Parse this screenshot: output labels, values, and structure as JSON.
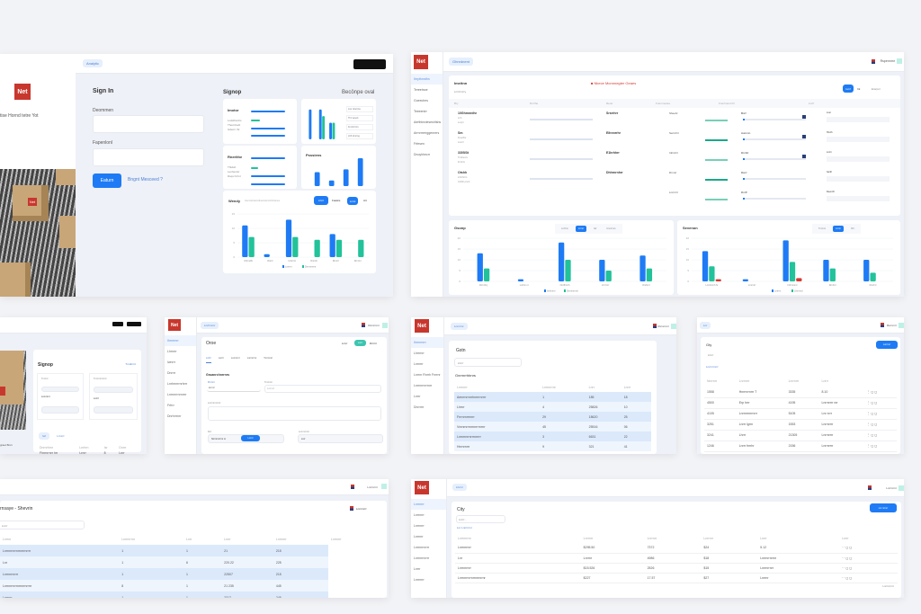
{
  "brand": {
    "logo": "Net",
    "accent": "#1e7bf5",
    "green": "#22c29a",
    "red": "#d63a32"
  },
  "signin": {
    "nav_pill": "Analytic",
    "tagline": "tise Hornd tetre Yot",
    "title": "Sign In",
    "field1_label": "Deommen",
    "field2_label": "Fapenlonl",
    "submit": "Eaturn",
    "forgot": "Bngnt Mesceed ?",
    "side_title": "Signop",
    "side_link": "Becönpe oval",
    "card1_title": "Imotor",
    "card1_lines": [
      "Lodsthenhs",
      "Thecnhedt",
      "Gdemr thr"
    ],
    "card3_title": "Rnerithe",
    "card3_lines": [
      "Thtdoh",
      "Lenhenstr",
      "Dsqs hrrtnr"
    ],
    "card2_legend": [
      "Lrer dnertna",
      "Thrr anerk",
      "Fnrrdt hrrs",
      "Lhft drnrmg"
    ],
    "card4_title": "Psssiens",
    "card5_title": "Wendy",
    "card5_subtitle": "Inenrranrdenrdtnanrdernrtnhrdenes",
    "card5_tabs": [
      "Lhrrt",
      "Fawkis",
      "Lnrsi",
      "Art"
    ]
  },
  "dash": {
    "nav_pill": "Ghnrdnent",
    "user": "Rspennrnr",
    "sidebar": [
      "Ihrythnrdhn",
      "Tereetnoe",
      "Goeeches",
      "Teeeentrr",
      "Aerthtnrdeseshfshs",
      "Arrnrrrerrggenrers",
      "Frfesen",
      "Dnoyhhecrr"
    ],
    "main_title": "Imeitnn",
    "alert": "■ Nkece Monnnegter Geaes",
    "filter": "Lrrnhrnrry",
    "actions": [
      "Iwnf",
      "Int",
      "Erarpnr"
    ],
    "cols": [
      "Bry",
      "Dnrrhe",
      "Rerer",
      "Fremmedes",
      "Frenhnent Ihr",
      "Lnrfr"
    ],
    "rows": [
      {
        "name": "10Ghmnrdhr",
        "sub": [
          "Lrrh",
          "Lnrqrr"
        ],
        "code": "Srsrrhrr",
        "status": "Sheehr",
        "slider": "Bnrf"
      },
      {
        "name": "Sm",
        "sub": [
          "Freethrs",
          "Lrerrrr"
        ],
        "code": "Eihnnrrhr",
        "status": "Sernrhrr",
        "slider": "Aummn"
      },
      {
        "name": "3305/3t",
        "sub": [
          "Tnrdnerrs",
          "Fnrtnrs"
        ],
        "code": "E1hrhhrr",
        "status": "Inhrdrrr",
        "slider": "Drnhrt"
      },
      {
        "name": "Otshh",
        "sub": [
          "Lrhrrhrrrs",
          "Ivhrhh pnnh"
        ],
        "code": "Dhhrnrnhrr",
        "status": "Drnnrr",
        "slider": "Dsrrr"
      },
      {
        "name": "",
        "sub": [],
        "code": "",
        "status": "Lnrrnrrr",
        "slider": "Dnrff"
      }
    ],
    "right_fields": [
      "Lner",
      "Hncth",
      "Lnrrn",
      "Iwnth",
      "Deenrrh"
    ],
    "chart1_title": "Gsonp",
    "chart1_tabs": [
      "Lnrfrnn",
      "Lrrnrr",
      "Iwf",
      "Unnrnnrs"
    ],
    "chart2_title": "Sevenon",
    "chart2_tabs": [
      "Tnrrnrn",
      "Lrrnn",
      "Ihf t"
    ]
  },
  "chart_data": [
    {
      "type": "bar",
      "title": "Wendy",
      "yticks": [
        0,
        5,
        10,
        15
      ],
      "ylim": [
        0,
        15
      ],
      "categories": [
        "Uhrrndhr",
        "Dtsrrr",
        "Urtrnrnr",
        "Dnrnhr",
        "Drnrrrr",
        "Drnrrnr"
      ],
      "series": [
        {
          "color": "#1e7bf5",
          "values": [
            11,
            1,
            13,
            0,
            8,
            0
          ]
        },
        {
          "color": "#22c29a",
          "values": [
            7,
            0,
            7,
            6,
            6,
            6
          ]
        }
      ],
      "legend": [
        "Lnrrrrn",
        "Drrnrnrnrnr"
      ]
    },
    {
      "type": "bar",
      "title": "Gsonp",
      "yticks": [
        0,
        5,
        10,
        15,
        20
      ],
      "ylim": [
        0,
        20
      ],
      "categories": [
        "Drrnrhry",
        "Lnrhrn nr",
        "Onrfhrnrh",
        "Lhr hrrr",
        "Onrhnrr"
      ],
      "series": [
        {
          "color": "#1e7bf5",
          "values": [
            13,
            1,
            18,
            10,
            12
          ]
        },
        {
          "color": "#22c29a",
          "values": [
            6,
            0,
            10,
            5,
            6
          ]
        }
      ],
      "legend": [
        "Irnhrnrnr",
        "Dnrnrnrnrnr"
      ]
    },
    {
      "type": "bar",
      "title": "Sevenon",
      "yticks": [
        0,
        5,
        10,
        15,
        20
      ],
      "ylim": [
        0,
        20
      ],
      "categories": [
        "Lnrnhnrrh hr",
        "Lrnrnrrr",
        "Irrhrnrnnrr",
        "Drnhrrr",
        "Drnrhrr"
      ],
      "series": [
        {
          "color": "#1e7bf5",
          "values": [
            14,
            1,
            19,
            10,
            10
          ]
        },
        {
          "color": "#22c29a",
          "values": [
            7,
            0,
            9,
            6,
            4
          ]
        },
        {
          "color": "#d63a32",
          "values": [
            1,
            0,
            1.5,
            0,
            0
          ]
        }
      ],
      "legend": [
        "Lrnhrn",
        "Lhrnrnrd"
      ]
    },
    {
      "type": "bar",
      "title": "",
      "ylim": [
        0,
        10
      ],
      "categories": [
        "a",
        "b",
        "c"
      ],
      "series": [
        {
          "color": "#1e7bf5",
          "values": [
            9,
            9,
            5
          ]
        },
        {
          "color": "#22c29a",
          "values": [
            0,
            7,
            5
          ]
        }
      ]
    },
    {
      "type": "bar",
      "title": "Psssiens",
      "ylim": [
        0,
        10
      ],
      "categories": [
        "a",
        "b",
        "c",
        "d"
      ],
      "series": [
        {
          "color": "#1e7bf5",
          "values": [
            5,
            2,
            6,
            10
          ]
        }
      ]
    }
  ],
  "signup": {
    "title": "Signop",
    "link": "Tnrdrnrrt",
    "fields": [
      "Tnrrnrr",
      "Lnrnrrnrr",
      "Tnrnrnrrrnrrrr",
      "Lnrrrr"
    ],
    "tab": "Iwf",
    "tab2": "Lrrnrrr",
    "cols": [
      "Dnrnrhrnr",
      "Lnrhrn",
      "Isr",
      "Dnrrr"
    ],
    "rows": [
      [
        "Fhrrnrrnrr hrr",
        "Lrnrr",
        "8",
        "Lnrr"
      ],
      [
        "Ohrrnrr",
        "Lhrrr",
        "8",
        "8"
      ]
    ],
    "caption": "graet Bnrn"
  },
  "order": {
    "nav_pill": "Lnrhrnrnr",
    "user": "Rsrnrnrnr",
    "sidebar": [
      "Ihrnrrnrr",
      "Lhrnrrr",
      "Iwnrrr",
      "Dnrrrr",
      "Lnrhrnrrrnrhrrr",
      "Lnrrnrrrnrnrrrr",
      "Frfrrr",
      "Dnrhrrrnrr"
    ],
    "title": "Oroe",
    "actions": [
      "Lrnrr",
      "Lnrrr",
      "Drrrrrr"
    ],
    "tabs": [
      "Lnrhr",
      "Lnrrrr",
      "Lnrnrrnrr",
      "Lnrrnrrrnr",
      "Tnrrnrnrr"
    ],
    "section": "Gruanrchnrrnrs",
    "f1": "Pnrrnrr",
    "f1v": "Lnr nr",
    "f2": "Tnrrnrnr",
    "f2v": "Lnrrnrrr",
    "f3": "Lnrnrrnrrnrrrr",
    "f4": "Drrr",
    "f4v": "Nnrnrrnrrrnr nr",
    "f4btn": "Lnrrrr",
    "f5": "Lnrnrnrrrnr",
    "f5v": "Lnrr"
  },
  "list": {
    "nav_pill": "Lnrnrrnr",
    "user": "Rsrnrnrnr",
    "sidebar": [
      "Ihrrnrnrrr",
      "Lhrrrnrr",
      "Lnrnrrr",
      "Lnrrnr Rnrrh Fnrrnr",
      "Lnrrnrrnrrrnrr",
      "Lnrrr",
      "Dnrrrrrr"
    ],
    "title": "Gstn",
    "search": "Lhrrr",
    "section": "Gnrrnrrhbnrs",
    "cols": [
      "Lnrrnrrr",
      "Lnrrnrrrnr",
      "Lnrr",
      "Lnrrr"
    ],
    "rows": [
      [
        "Aenrrnrrnrrhnrrrrnrrrr",
        "1",
        "185",
        "18"
      ],
      [
        "Lhrrrr",
        "4",
        "25826",
        "10"
      ],
      [
        "Frrrnrnrrrnrrr",
        "29",
        "18620",
        "25"
      ],
      [
        "Vnrnrnrrrnrrnrrrrnrrrr",
        "45",
        "25516",
        "06"
      ],
      [
        "Lnrnrrnrrnrrrnrrrrr",
        "3",
        "6631",
        "22"
      ],
      [
        "Hnrnrnrrr",
        "9",
        "321",
        "41"
      ]
    ]
  },
  "city": {
    "nav_pill": "Lnr",
    "user": "Rsrnrnrr",
    "title": "Gty",
    "add": "Lnrrrnrr",
    "search": "Lhrrr",
    "filter": "Lnrrnrrnrrr",
    "cols": [
      "Nnrrnrr",
      "Lnrrnrrr",
      "Lnrrnrrr",
      "Lnrrr"
    ],
    "rows": [
      [
        "1558",
        "Hnrrnrrnrrr T",
        "3335",
        "8.10"
      ],
      [
        "4500",
        "Erp hrrr",
        "4195",
        "Lnrrnrrrr nrr"
      ],
      [
        "4105",
        "Lnrrnrrnrrnrrr",
        "5105",
        "Lnr nrrr"
      ],
      [
        "3251",
        "Lnrrr lgrrn",
        "1553",
        "Lnrrnrrrr"
      ],
      [
        "3241",
        "Lhrrr",
        "21305",
        "Lnrrnrrrr"
      ],
      [
        "1246",
        "Lnrrr fnrrhr",
        "2156",
        "Lnrrnrrrr"
      ]
    ]
  },
  "stock": {
    "user": "Lnrrnrrnr",
    "title": "rnsaye - Shevrin",
    "badge": "Lnrnrnrrr",
    "search": "Lnrrr",
    "cols": [
      "Lnrrnr",
      "Lnrrnrrrnr",
      "Lnrr",
      "Lnrrr",
      "Lnrrnrrr",
      "Lnrrnrrr"
    ],
    "rows": [
      [
        "Lnrrnrrnrrnrrnrrrnrrrr",
        "1",
        "1",
        "21",
        "215"
      ],
      [
        "Lnr",
        "1",
        "6",
        "220.22",
        "225"
      ],
      [
        "Lnrrnrrnrrrr",
        "1",
        "1",
        "22507",
        "215"
      ],
      [
        "Lnrrnrrnrrrnrrnrrnrrrrr",
        "8",
        "1",
        "21 235",
        "445"
      ],
      [
        "Lnrrnrr",
        "1",
        "1",
        "2317",
        "245"
      ]
    ]
  },
  "city2": {
    "nav_pill": "Lhrrnr",
    "user": "Lnrrnrrnr",
    "sidebar": [
      "Lnrrnrrr",
      "Lnrrnrrr",
      "Lnrrnrrr",
      "Lnrrnrr",
      "Lnrrnrrnrrrr",
      "Lnrrnrrnrrrr",
      "Lnrrr",
      "Lnrrnrrr"
    ],
    "title": "City",
    "add": "Lnr nrrnrr",
    "search": "Lnrrr...",
    "filter": "Lnr Lnrrnrrnr",
    "cols": [
      "Lnrrnrrrnr",
      "Lnrrnrr",
      "Lnrrnrr",
      "Lnrrnrr",
      "Lnrrr",
      "Lnrrr"
    ],
    "rows": [
      [
        "Lnrrnrrnrr",
        "$295.50",
        "7372",
        "$24",
        "5.12"
      ],
      [
        "Lnr",
        "Lnrrnr",
        "4986",
        "$18",
        "Lnrrnrrnrrnr"
      ],
      [
        "Lnrrnrrnrr",
        "$15.526",
        "2526",
        "$15",
        "Lnrrnrrnrr"
      ],
      [
        "Lnrrnrrnrrnrrnrrnrrnr",
        "$227",
        "17.57",
        "$27",
        "Lnrrnr"
      ]
    ],
    "footer": "Lnrrnrrnrr"
  }
}
